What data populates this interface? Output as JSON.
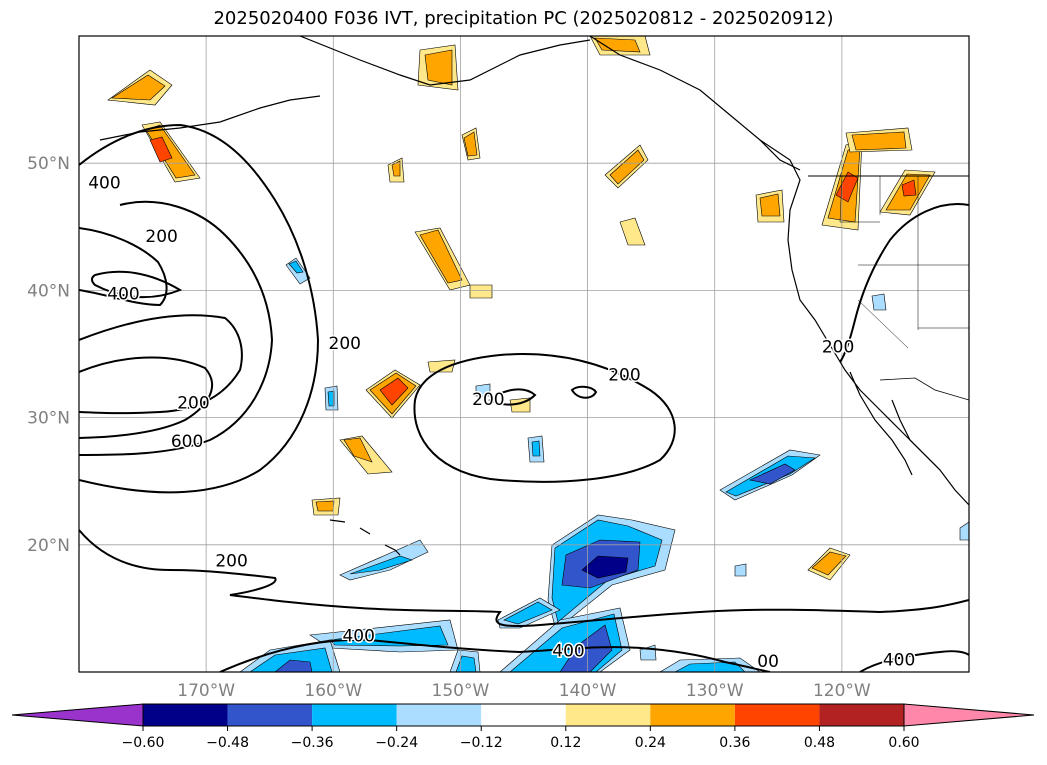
{
  "chart_data": {
    "type": "contour-map",
    "title": "2025020400 F036 IVT, precipitation PC (2025020812 - 2025020912)",
    "x_ticks": [
      {
        "lon": -170,
        "label": "170°W"
      },
      {
        "lon": -160,
        "label": "160°W"
      },
      {
        "lon": -150,
        "label": "150°W"
      },
      {
        "lon": -140,
        "label": "140°W"
      },
      {
        "lon": -130,
        "label": "130°W"
      },
      {
        "lon": -120,
        "label": "120°W"
      }
    ],
    "y_ticks": [
      {
        "lat": 50,
        "label": "50°N"
      },
      {
        "lat": 40,
        "label": "40°N"
      },
      {
        "lat": 30,
        "label": "30°N"
      },
      {
        "lat": 20,
        "label": "20°N"
      }
    ],
    "xlim": [
      -180,
      -110
    ],
    "ylim": [
      10,
      60
    ],
    "grid": true,
    "colorbar": {
      "orientation": "horizontal",
      "extend": "both",
      "levels": [
        -0.6,
        -0.48,
        -0.36,
        -0.24,
        -0.12,
        0.12,
        0.24,
        0.36,
        0.48,
        0.6
      ],
      "tick_labels": [
        "−0.60",
        "−0.48",
        "−0.36",
        "−0.24",
        "−0.12",
        "0.12",
        "0.24",
        "0.36",
        "0.48",
        "0.60"
      ],
      "colors": [
        "#9933cc",
        "#000088",
        "#3355cc",
        "#00bbff",
        "#aaddff",
        "#ffffff",
        "#ffe88a",
        "#ffa500",
        "#ff4400",
        "#b22222",
        "#ff88aa"
      ]
    },
    "contour_levels": [
      200,
      400,
      600
    ],
    "contour_labels": [
      {
        "text": "400",
        "lon": -178,
        "lat": 48
      },
      {
        "text": "200",
        "lon": -173.5,
        "lat": 43.8
      },
      {
        "text": "400",
        "lon": -176.5,
        "lat": 39.3
      },
      {
        "text": "200",
        "lon": -171,
        "lat": 30.7
      },
      {
        "text": "600",
        "lon": -171.5,
        "lat": 27.7
      },
      {
        "text": "200",
        "lon": -159.1,
        "lat": 35.4
      },
      {
        "text": "200",
        "lon": -137.1,
        "lat": 32.9
      },
      {
        "text": "200",
        "lon": -147.8,
        "lat": 31
      },
      {
        "text": "200",
        "lon": -120.3,
        "lat": 35.1
      },
      {
        "text": "200",
        "lon": -168,
        "lat": 18.3
      },
      {
        "text": "400",
        "lon": -158,
        "lat": 12.4
      },
      {
        "text": "400",
        "lon": -141.5,
        "lat": 11.2
      },
      {
        "text": "400",
        "lon": -115.5,
        "lat": 10.5
      },
      {
        "text": "00",
        "lon": -125.8,
        "lat": 10.4
      }
    ]
  }
}
